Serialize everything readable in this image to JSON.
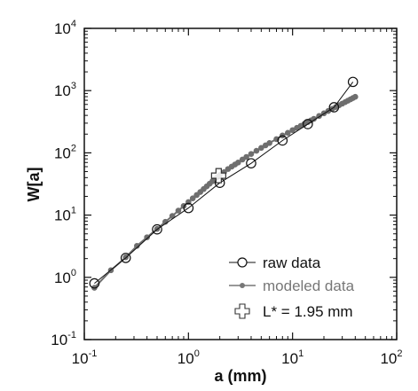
{
  "chart_data": {
    "type": "scatter",
    "xlabel": "a (mm)",
    "ylabel": "W[a]",
    "x_scale": "log",
    "y_scale": "log",
    "xlim": [
      0.1,
      100
    ],
    "ylim": [
      0.1,
      10000
    ],
    "grid": false,
    "legend_position": "bottom-right",
    "x_ticks": [
      {
        "base": "10",
        "exp": "-1",
        "value": 0.1
      },
      {
        "base": "10",
        "exp": "0",
        "value": 1
      },
      {
        "base": "10",
        "exp": "1",
        "value": 10
      },
      {
        "base": "10",
        "exp": "2",
        "value": 100
      }
    ],
    "y_ticks": [
      {
        "base": "10",
        "exp": "-1",
        "value": 0.1
      },
      {
        "base": "10",
        "exp": "0",
        "value": 1
      },
      {
        "base": "10",
        "exp": "1",
        "value": 10
      },
      {
        "base": "10",
        "exp": "2",
        "value": 100
      },
      {
        "base": "10",
        "exp": "3",
        "value": 1000
      },
      {
        "base": "10",
        "exp": "4",
        "value": 10000
      }
    ],
    "series": [
      {
        "name": "raw data",
        "marker": "open-circle",
        "color": "#111111",
        "x": [
          0.125,
          0.25,
          0.5,
          1.0,
          2.0,
          4.0,
          8.0,
          14.0,
          25.0,
          38.0
        ],
        "y": [
          0.8,
          2.05,
          5.9,
          13.0,
          33.0,
          68.0,
          158.0,
          290.0,
          540.0,
          1380.0
        ]
      },
      {
        "name": "modeled data",
        "marker": "filled-dot",
        "color": "#6e6e6e",
        "x": [
          0.125,
          0.18,
          0.25,
          0.32,
          0.4,
          0.5,
          0.6,
          0.7,
          0.8,
          0.9,
          1.0,
          1.1,
          1.2,
          1.3,
          1.4,
          1.5,
          1.6,
          1.7,
          1.8,
          1.9,
          2.0,
          2.2,
          2.4,
          2.6,
          2.8,
          3.0,
          3.3,
          3.6,
          4.0,
          4.5,
          5.0,
          5.5,
          6.0,
          7.0,
          8.0,
          9.0,
          10.0,
          11.0,
          12.0,
          13.0,
          14.0,
          15.0,
          16.0,
          18.0,
          20.0,
          22.0,
          24.0,
          26.0,
          28.0,
          30.0,
          32.0,
          34.0,
          36.0,
          38.0,
          40.0
        ],
        "y": [
          0.68,
          1.3,
          2.1,
          3.2,
          4.4,
          6.0,
          7.8,
          9.7,
          11.8,
          14.0,
          16.2,
          18.6,
          21.0,
          23.5,
          26.2,
          29.0,
          32.0,
          35.0,
          38.0,
          41.0,
          44.0,
          49.0,
          55.0,
          60.0,
          65.0,
          70.0,
          78.0,
          86.0,
          96.0,
          108.0,
          120.0,
          132.0,
          144.0,
          166.0,
          190.0,
          210.0,
          232.0,
          252.0,
          272.0,
          292.0,
          312.0,
          332.0,
          352.0,
          392.0,
          432.0,
          470.0,
          508.0,
          546.0,
          582.0,
          618.0,
          654.0,
          690.0,
          725.0,
          760.0,
          795.0
        ]
      }
    ],
    "marker_point": {
      "label": "L* = 1.95 mm",
      "marker": "open-cross",
      "x": 1.95,
      "y": 43
    },
    "legend": [
      {
        "label": "raw data",
        "marker": "open-circle",
        "color": "#111111"
      },
      {
        "label": "modeled data",
        "marker": "filled-dot",
        "color": "#6e6e6e"
      },
      {
        "label": "L* = 1.95 mm",
        "marker": "open-cross",
        "color": "#333333"
      }
    ]
  }
}
